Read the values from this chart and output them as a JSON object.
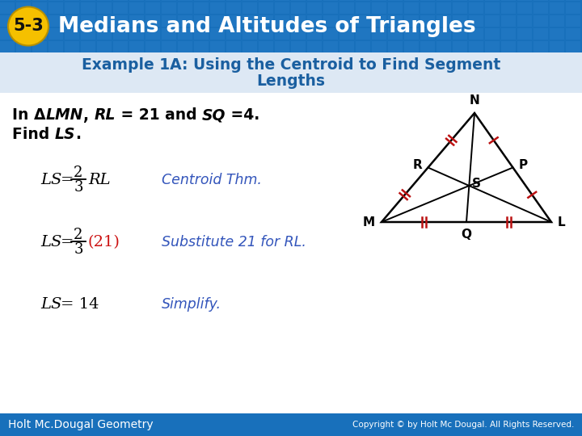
{
  "title_badge": "5-3",
  "title_text": "Medians and Altitudes of Triangles",
  "subtitle_line1": "Example 1A: Using the Centroid to Find Segment",
  "subtitle_line2": "Lengths",
  "header_bg_color": "#1870bb",
  "grid_color": "#2a80cc",
  "badge_bg_color": "#f5c000",
  "badge_text_color": "#111111",
  "subtitle_bg_color": "#dde8f4",
  "subtitle_text_color": "#1a5fa0",
  "body_bg_color": "#ffffff",
  "body_text_color": "#000000",
  "blue_color": "#3355bb",
  "red_color": "#cc1111",
  "footer_bg_color": "#1870bb",
  "footer_text_color": "#ffffff",
  "footer_left": "Holt Mc.Dougal Geometry",
  "footer_right": "Copyright © by Holt Mc Dougal. All Rights Reserved."
}
